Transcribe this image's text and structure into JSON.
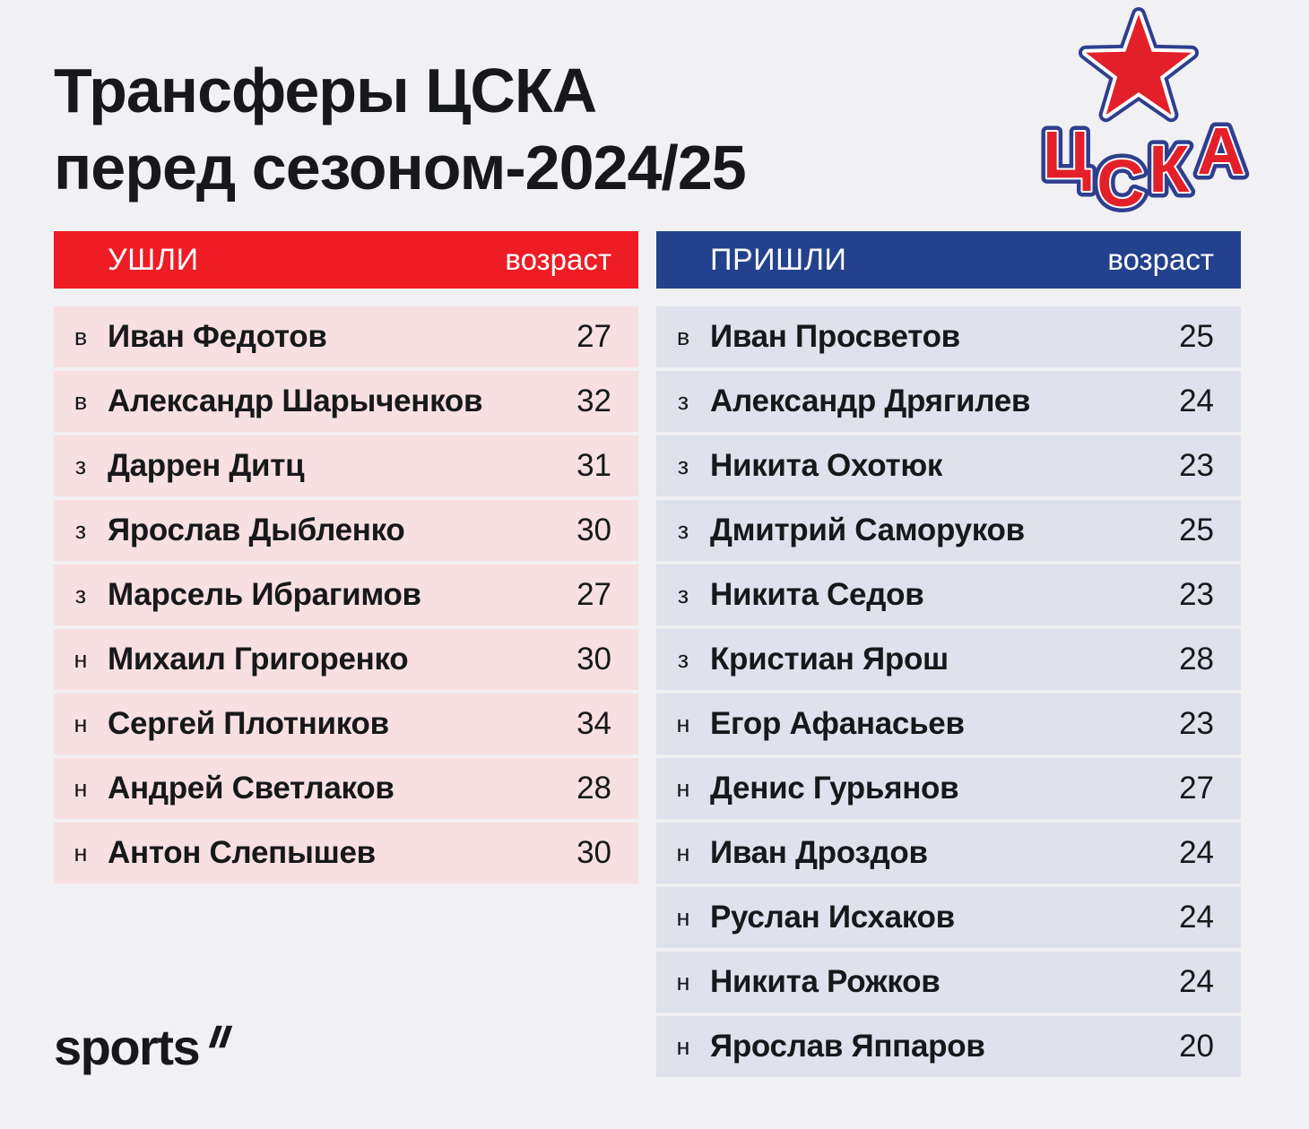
{
  "title": {
    "line1": "Трансферы ЦСКА",
    "line2": "перед сезоном-2024/25"
  },
  "logo": {
    "club": "ЦСКА",
    "letters": [
      "Ц",
      "С",
      "К",
      "А"
    ]
  },
  "footer": {
    "brand": "sports"
  },
  "colors": {
    "background": "#f1f0f2",
    "accent_red": "#ed1c25",
    "accent_blue": "#24418e",
    "row_pink": "#f7dfe2",
    "row_lavender": "#dfe1ec",
    "text": "#17181a",
    "header_text": "#ffffff"
  },
  "chart_data": [
    {
      "type": "table",
      "title": "УШЛИ",
      "age_label": "возраст",
      "rows": [
        {
          "pos": "в",
          "name": "Иван Федотов",
          "age": 27
        },
        {
          "pos": "в",
          "name": "Александр Шарыченков",
          "age": 32
        },
        {
          "pos": "з",
          "name": "Даррен Дитц",
          "age": 31
        },
        {
          "pos": "з",
          "name": "Ярослав Дыбленко",
          "age": 30
        },
        {
          "pos": "з",
          "name": "Марсель Ибрагимов",
          "age": 27
        },
        {
          "pos": "н",
          "name": "Михаил Григоренко",
          "age": 30
        },
        {
          "pos": "н",
          "name": "Сергей Плотников",
          "age": 34
        },
        {
          "pos": "н",
          "name": "Андрей Светлаков",
          "age": 28
        },
        {
          "pos": "н",
          "name": "Антон Слепышев",
          "age": 30
        }
      ]
    },
    {
      "type": "table",
      "title": "ПРИШЛИ",
      "age_label": "возраст",
      "rows": [
        {
          "pos": "в",
          "name": "Иван Просветов",
          "age": 25
        },
        {
          "pos": "з",
          "name": "Александр Дрягилев",
          "age": 24
        },
        {
          "pos": "з",
          "name": "Никита Охотюк",
          "age": 23
        },
        {
          "pos": "з",
          "name": "Дмитрий Саморуков",
          "age": 25
        },
        {
          "pos": "з",
          "name": "Никита Седов",
          "age": 23
        },
        {
          "pos": "з",
          "name": "Кристиан Ярош",
          "age": 28
        },
        {
          "pos": "н",
          "name": "Егор Афанасьев",
          "age": 23
        },
        {
          "pos": "н",
          "name": "Денис Гурьянов",
          "age": 27
        },
        {
          "pos": "н",
          "name": "Иван Дроздов",
          "age": 24
        },
        {
          "pos": "н",
          "name": "Руслан Исхаков",
          "age": 24
        },
        {
          "pos": "н",
          "name": "Никита Рожков",
          "age": 24
        },
        {
          "pos": "н",
          "name": "Ярослав Яппаров",
          "age": 20
        }
      ]
    }
  ]
}
